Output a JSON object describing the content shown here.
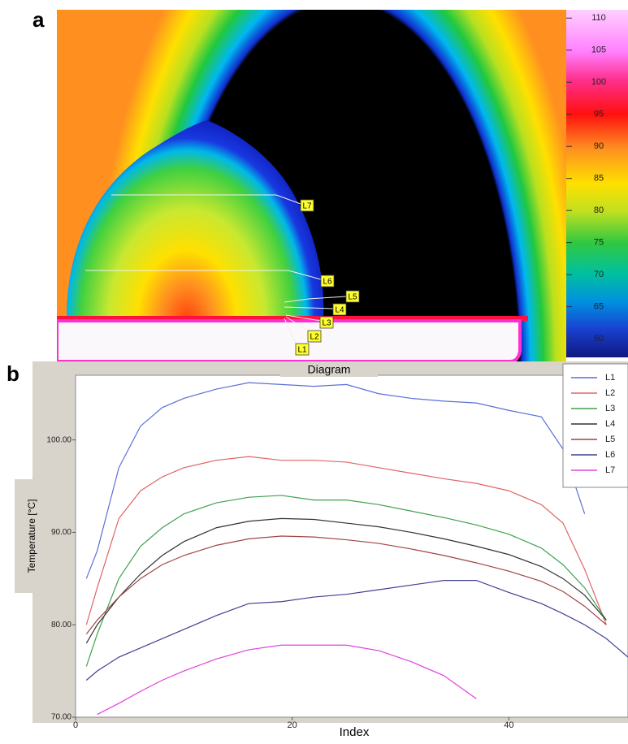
{
  "panel_labels": [
    "a",
    "b"
  ],
  "thermal_image": {
    "colorbar": {
      "range": [
        57.1,
        111.3
      ],
      "ticks": [
        110,
        105,
        100,
        95,
        90,
        85,
        80,
        75,
        70,
        65,
        60
      ]
    },
    "markers": [
      "L1",
      "L2",
      "L3",
      "L4",
      "L5",
      "L6",
      "L7"
    ]
  },
  "chart_data": {
    "type": "line",
    "title": "Diagram",
    "x_label": "Index",
    "y_label": "Temperature [°C]",
    "x": [
      1,
      2,
      4,
      6,
      8,
      10,
      13,
      16,
      19,
      22,
      25,
      28,
      31,
      34,
      37,
      40,
      43,
      45,
      47,
      49,
      51
    ],
    "xlim": [
      0,
      51
    ],
    "xticks": [
      0,
      20,
      40
    ],
    "ylim": [
      70,
      107
    ],
    "yticks": [
      {
        "value": 70,
        "label": "70.00"
      },
      {
        "value": 80,
        "label": "80.00"
      },
      {
        "value": 90,
        "label": "90.00"
      },
      {
        "value": 100,
        "label": "100.00"
      }
    ],
    "legend": "upper right",
    "series": [
      {
        "name": "L1",
        "color": "#5b6fd8",
        "values": [
          85,
          88,
          97,
          101.5,
          103.5,
          104.5,
          105.5,
          106.2,
          106,
          105.8,
          106,
          105,
          104.5,
          104.2,
          104,
          103.2,
          102.5,
          99,
          92,
          null,
          null
        ]
      },
      {
        "name": "L2",
        "color": "#e06464",
        "values": [
          80,
          84,
          91.5,
          94.5,
          96,
          97,
          97.8,
          98.2,
          97.8,
          97.8,
          97.6,
          97,
          96.4,
          95.8,
          95.3,
          94.5,
          93,
          91,
          86,
          80,
          null
        ]
      },
      {
        "name": "L3",
        "color": "#3fa04f",
        "values": [
          75.5,
          79,
          85,
          88.5,
          90.5,
          92,
          93.2,
          93.8,
          94,
          93.5,
          93.5,
          93,
          92.3,
          91.6,
          90.8,
          89.8,
          88.3,
          86.5,
          84,
          80.5,
          null
        ]
      },
      {
        "name": "L4",
        "color": "#333333",
        "values": [
          78,
          80,
          83,
          85.5,
          87.5,
          89,
          90.5,
          91.2,
          91.5,
          91.4,
          91,
          90.6,
          90,
          89.3,
          88.5,
          87.6,
          86.3,
          85,
          83.2,
          80.5,
          null
        ]
      },
      {
        "name": "L5",
        "color": "#a04444",
        "values": [
          79,
          80.5,
          83,
          85,
          86.5,
          87.5,
          88.6,
          89.3,
          89.6,
          89.5,
          89.2,
          88.8,
          88.2,
          87.5,
          86.7,
          85.8,
          84.7,
          83.6,
          82,
          80,
          null
        ]
      },
      {
        "name": "L6",
        "color": "#404090",
        "values": [
          74,
          75,
          76.5,
          77.5,
          78.5,
          79.5,
          81,
          82.3,
          82.5,
          83,
          83.3,
          83.8,
          84.3,
          84.8,
          84.8,
          83.5,
          82.3,
          81.2,
          80,
          78.5,
          76.5
        ]
      },
      {
        "name": "L7",
        "color": "#e040e0",
        "values": [
          null,
          70.3,
          71.5,
          72.8,
          74,
          75,
          76.3,
          77.3,
          77.8,
          77.8,
          77.8,
          77.2,
          76,
          74.5,
          72,
          null,
          null,
          null,
          null,
          null,
          null
        ]
      }
    ]
  }
}
